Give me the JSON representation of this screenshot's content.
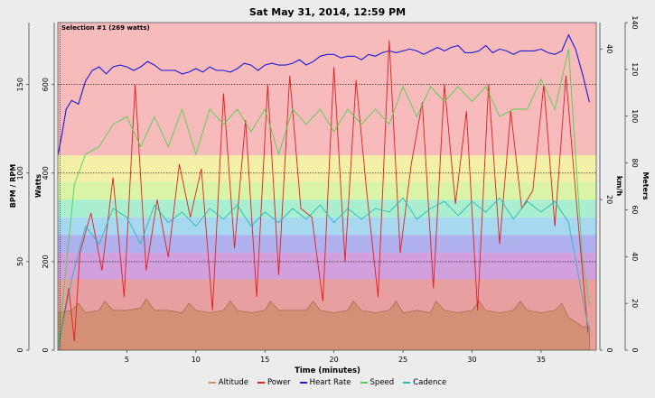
{
  "header": {
    "title": "Sat May 31, 2014, 12:59 PM"
  },
  "selection": {
    "label": "Selection #1 (269 watts)"
  },
  "colors": {
    "altitude": "#d08d6f",
    "power": "#e11d1d",
    "heart_rate": "#1818d6",
    "speed": "#4ed14e",
    "cadence": "#2ab8b8",
    "zones": [
      "#e79fa0",
      "#d2a0dc",
      "#b0b0ef",
      "#a8d7f0",
      "#a9efcf",
      "#d9f4a6",
      "#f5f0a7",
      "#f7bbbb"
    ]
  },
  "chart_data": {
    "type": "line",
    "title": "Sat May 31, 2014, 12:59 PM",
    "xlabel": "Time (minutes)",
    "xlim": [
      0,
      39
    ],
    "xticks": [
      5,
      10,
      15,
      20,
      25,
      30,
      35
    ],
    "axes": {
      "bpm_rpm": {
        "label": "BPM / RPM",
        "lim": [
          0,
          185
        ],
        "ticks": [
          0,
          50,
          100,
          150
        ]
      },
      "watts": {
        "label": "Watts",
        "lim": [
          0,
          740
        ],
        "ticks": [
          0,
          200,
          400,
          600
        ]
      },
      "kmh": {
        "label": "km/h",
        "lim": [
          0,
          43.5
        ],
        "ticks": [
          0,
          20,
          40
        ]
      },
      "meters": {
        "label": "Meters",
        "lim": [
          0,
          140
        ],
        "ticks": [
          0,
          20,
          40,
          60,
          80,
          100,
          120,
          140
        ]
      }
    },
    "reference_lines_watts": [
      600,
      400,
      200
    ],
    "selection_watts": 269,
    "power_zones_watts": [
      0,
      160,
      220,
      260,
      300,
      340,
      380,
      440,
      740
    ],
    "legend": [
      "Altitude",
      "Power",
      "Heart Rate",
      "Speed",
      "Cadence"
    ],
    "series": [
      {
        "name": "Heart Rate",
        "axis": "bpm_rpm",
        "x": [
          0.0,
          0.3,
          0.6,
          1.0,
          1.5,
          2.0,
          2.5,
          3.0,
          3.5,
          4.0,
          4.5,
          5.0,
          5.5,
          6.0,
          6.5,
          7.0,
          7.5,
          8.0,
          8.5,
          9.0,
          9.5,
          10.0,
          10.5,
          11.0,
          11.5,
          12.0,
          12.5,
          13.0,
          13.5,
          14.0,
          14.5,
          15.0,
          15.5,
          16.0,
          16.5,
          17.0,
          17.5,
          18.0,
          18.5,
          19.0,
          19.5,
          20.0,
          20.5,
          21.0,
          21.5,
          22.0,
          22.5,
          23.0,
          23.5,
          24.0,
          24.5,
          25.0,
          25.5,
          26.0,
          26.5,
          27.0,
          27.5,
          28.0,
          28.5,
          29.0,
          29.5,
          30.0,
          30.5,
          31.0,
          31.5,
          32.0,
          32.5,
          33.0,
          33.5,
          34.0,
          34.5,
          35.0,
          35.5,
          36.0,
          36.5,
          37.0,
          37.5,
          38.0,
          38.5
        ],
        "values": [
          110,
          122,
          136,
          141,
          139,
          152,
          158,
          160,
          156,
          160,
          161,
          160,
          158,
          160,
          163,
          161,
          158,
          158,
          158,
          156,
          157,
          159,
          157,
          160,
          158,
          158,
          157,
          159,
          162,
          161,
          158,
          161,
          162,
          161,
          161,
          162,
          164,
          161,
          163,
          166,
          167,
          167,
          165,
          166,
          166,
          164,
          167,
          166,
          168,
          169,
          168,
          169,
          170,
          169,
          167,
          169,
          171,
          169,
          171,
          172,
          168,
          168,
          169,
          172,
          168,
          170,
          169,
          167,
          169,
          169,
          169,
          170,
          168,
          167,
          169,
          178,
          170,
          156,
          140
        ]
      },
      {
        "name": "Altitude",
        "axis": "meters",
        "x": [
          0,
          1,
          1.5,
          2,
          3,
          3.4,
          4,
          5,
          6,
          6.4,
          7,
          8,
          9,
          9.5,
          10,
          11,
          12,
          12.5,
          13,
          14,
          15,
          15.4,
          16,
          17,
          18,
          18.5,
          19,
          20,
          21,
          21.4,
          22,
          23,
          24,
          24.5,
          25,
          26,
          27,
          27.4,
          28,
          29,
          30,
          30.5,
          31,
          32,
          33,
          33.5,
          34,
          35,
          36,
          36.5,
          37,
          37.5,
          38,
          38.5
        ],
        "values": [
          16,
          17,
          20,
          16,
          17,
          21,
          17,
          17,
          18,
          22,
          17,
          17,
          16,
          20,
          17,
          16,
          17,
          21,
          17,
          16,
          17,
          21,
          17,
          17,
          17,
          21,
          17,
          16,
          17,
          21,
          17,
          16,
          17,
          21,
          16,
          17,
          16,
          21,
          17,
          16,
          17,
          21,
          17,
          16,
          17,
          21,
          17,
          16,
          17,
          20,
          14,
          12,
          10,
          10
        ]
      },
      {
        "name": "Power",
        "axis": "watts",
        "x": [
          0,
          0.8,
          1.2,
          1.6,
          2.4,
          3.2,
          4.0,
          4.8,
          5.6,
          6.4,
          7.2,
          8.0,
          8.8,
          9.6,
          10.4,
          11.2,
          12.0,
          12.8,
          13.6,
          14.4,
          15.2,
          16.0,
          16.8,
          17.6,
          18.4,
          19.2,
          20.0,
          20.8,
          21.6,
          22.4,
          23.2,
          24.0,
          24.8,
          25.6,
          26.4,
          27.2,
          28.0,
          28.8,
          29.6,
          30.4,
          31.2,
          32.0,
          32.8,
          33.6,
          34.4,
          35.2,
          36.0,
          36.8,
          37.6,
          38.4
        ],
        "values": [
          0,
          140,
          20,
          220,
          310,
          180,
          390,
          120,
          600,
          180,
          340,
          210,
          420,
          300,
          410,
          90,
          580,
          230,
          520,
          120,
          600,
          170,
          620,
          320,
          300,
          110,
          640,
          200,
          610,
          350,
          120,
          700,
          220,
          420,
          560,
          140,
          600,
          330,
          540,
          90,
          600,
          240,
          540,
          320,
          360,
          600,
          280,
          620,
          320,
          40
        ]
      },
      {
        "name": "Speed",
        "axis": "kmh",
        "x": [
          0,
          1.2,
          2.0,
          3.0,
          4.0,
          5.0,
          6.0,
          7.0,
          8.0,
          9.0,
          10.0,
          11.0,
          12.0,
          13.0,
          14.0,
          15.0,
          16.0,
          17.0,
          18.0,
          19.0,
          20.0,
          21.0,
          22.0,
          23.0,
          24.0,
          25.0,
          26.0,
          27.0,
          28.0,
          29.0,
          30.0,
          31.0,
          32.0,
          33.0,
          34.0,
          35.0,
          36.0,
          37.0,
          38.0,
          38.5
        ],
        "values": [
          0,
          22,
          26,
          27,
          30,
          31,
          27,
          31,
          27,
          32,
          26,
          32,
          30,
          32,
          29,
          32,
          26,
          32,
          30,
          32,
          29,
          32,
          30,
          32,
          30,
          35,
          31,
          35,
          33,
          35,
          33,
          35,
          31,
          32,
          32,
          36,
          32,
          40,
          12,
          6
        ]
      },
      {
        "name": "Cadence",
        "axis": "bpm_rpm",
        "x": [
          0,
          1.0,
          2.0,
          3.0,
          4.0,
          5.0,
          6.0,
          7.0,
          8.0,
          9.0,
          10.0,
          11.0,
          12.0,
          13.0,
          14.0,
          15.0,
          16.0,
          17.0,
          18.0,
          19.0,
          20.0,
          21.0,
          22.0,
          23.0,
          24.0,
          25.0,
          26.0,
          27.0,
          28.0,
          29.0,
          30.0,
          31.0,
          32.0,
          33.0,
          34.0,
          35.0,
          36.0,
          37.0,
          38.0,
          38.5
        ],
        "values": [
          0,
          40,
          70,
          60,
          80,
          75,
          60,
          82,
          72,
          78,
          70,
          80,
          74,
          82,
          70,
          78,
          72,
          80,
          74,
          82,
          72,
          80,
          74,
          80,
          78,
          86,
          74,
          80,
          84,
          76,
          84,
          78,
          86,
          74,
          84,
          78,
          84,
          72,
          30,
          10
        ]
      }
    ]
  },
  "legend": [
    {
      "name": "Altitude",
      "key": "altitude"
    },
    {
      "name": "Power",
      "key": "power"
    },
    {
      "name": "Heart Rate",
      "key": "heart_rate"
    },
    {
      "name": "Speed",
      "key": "speed"
    },
    {
      "name": "Cadence",
      "key": "cadence"
    }
  ]
}
